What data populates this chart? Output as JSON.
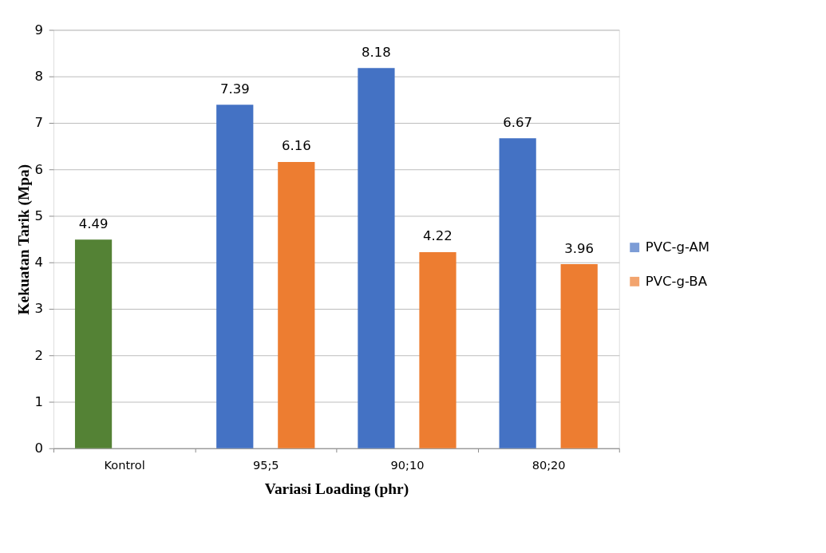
{
  "chart_data": {
    "type": "bar",
    "xlabel": "Variasi Loading (phr)",
    "ylabel": "Kekuatan Tarik (Mpa)",
    "categories": [
      "Kontrol",
      "95;5",
      "90;10",
      "80;20"
    ],
    "series": [
      {
        "name": "PVC-g-AM",
        "color": "#4472c4",
        "colors": [
          "#548235",
          "#4472c4",
          "#4472c4",
          "#4472c4"
        ],
        "values": [
          4.49,
          7.39,
          8.18,
          6.67
        ]
      },
      {
        "name": "PVC-g-BA",
        "color": "#ed7d31",
        "values": [
          null,
          6.16,
          4.22,
          3.96
        ]
      }
    ],
    "ylim": [
      0,
      9
    ],
    "yticks": [
      0,
      1,
      2,
      3,
      4,
      5,
      6,
      7,
      8,
      9
    ],
    "grid": "y",
    "legend": "right",
    "data_labels": true
  }
}
